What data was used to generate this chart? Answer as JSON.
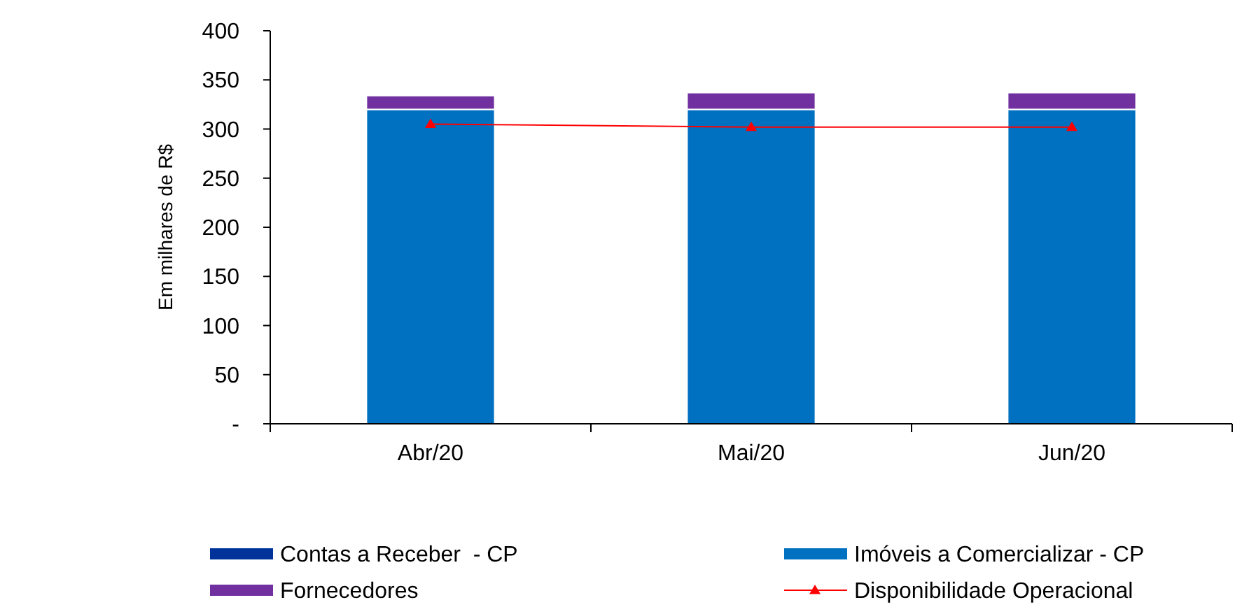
{
  "chart_data": {
    "type": "bar",
    "stacked": true,
    "ylabel": "Em milhares de R$",
    "categories": [
      "Abr/20",
      "Mai/20",
      "Jun/20"
    ],
    "ylim": [
      0,
      400
    ],
    "yticks": [
      {
        "value": 0,
        "label": "-"
      },
      50,
      100,
      150,
      200,
      250,
      300,
      350,
      400
    ],
    "grid": false,
    "legend": "bottom",
    "series": [
      {
        "name": "Contas a Receber  - CP",
        "color": "#003399",
        "values": [
          0,
          0,
          0
        ]
      },
      {
        "name": "Imóveis a Comercializar - CP",
        "color": "#0070c0",
        "values": [
          320,
          320,
          320
        ]
      },
      {
        "name": "Fornecedores",
        "color": "#7030a0",
        "values": [
          14,
          17,
          17
        ]
      },
      {
        "name": "Disponibilidade Operacional",
        "type": "line",
        "color": "#ff0000",
        "marker": "triangle",
        "values": [
          305,
          302,
          302
        ]
      }
    ]
  }
}
